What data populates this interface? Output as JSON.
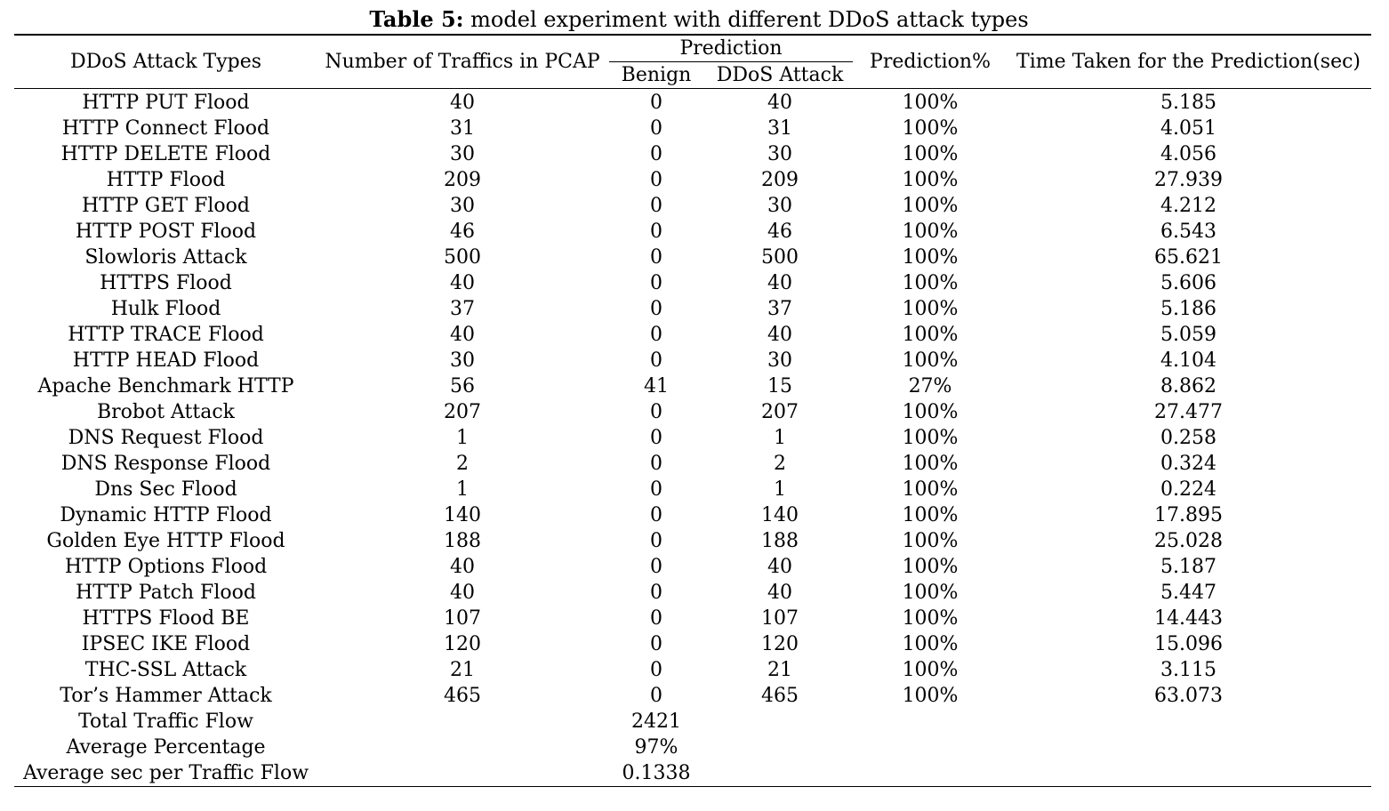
{
  "caption": {
    "label": "Table 5:",
    "text": "model experiment with different DDoS attack types"
  },
  "headers": {
    "attack_type": "DDoS Attack Types",
    "num_traffics": "Number of Traffics in PCAP",
    "prediction": "Prediction",
    "benign": "Benign",
    "ddos_attack": "DDoS Attack",
    "prediction_pct": "Prediction%",
    "time_taken": "Time Taken for the Prediction(sec)"
  },
  "rows": [
    {
      "type": "HTTP PUT Flood",
      "count": "40",
      "benign": "0",
      "ddos": "40",
      "pct": "100%",
      "time": "5.185"
    },
    {
      "type": "HTTP Connect Flood",
      "count": "31",
      "benign": "0",
      "ddos": "31",
      "pct": "100%",
      "time": "4.051"
    },
    {
      "type": "HTTP DELETE Flood",
      "count": "30",
      "benign": "0",
      "ddos": "30",
      "pct": "100%",
      "time": "4.056"
    },
    {
      "type": "HTTP Flood",
      "count": "209",
      "benign": "0",
      "ddos": "209",
      "pct": "100%",
      "time": "27.939"
    },
    {
      "type": "HTTP GET Flood",
      "count": "30",
      "benign": "0",
      "ddos": "30",
      "pct": "100%",
      "time": "4.212"
    },
    {
      "type": "HTTP POST Flood",
      "count": "46",
      "benign": "0",
      "ddos": "46",
      "pct": "100%",
      "time": "6.543"
    },
    {
      "type": "Slowloris Attack",
      "count": "500",
      "benign": "0",
      "ddos": "500",
      "pct": "100%",
      "time": "65.621"
    },
    {
      "type": "HTTPS Flood",
      "count": "40",
      "benign": "0",
      "ddos": "40",
      "pct": "100%",
      "time": "5.606"
    },
    {
      "type": "Hulk Flood",
      "count": "37",
      "benign": "0",
      "ddos": "37",
      "pct": "100%",
      "time": "5.186"
    },
    {
      "type": "HTTP TRACE Flood",
      "count": "40",
      "benign": "0",
      "ddos": "40",
      "pct": "100%",
      "time": "5.059"
    },
    {
      "type": "HTTP HEAD Flood",
      "count": "30",
      "benign": "0",
      "ddos": "30",
      "pct": "100%",
      "time": "4.104"
    },
    {
      "type": "Apache Benchmark HTTP",
      "count": "56",
      "benign": "41",
      "ddos": "15",
      "pct": "27%",
      "time": "8.862"
    },
    {
      "type": "Brobot Attack",
      "count": "207",
      "benign": "0",
      "ddos": "207",
      "pct": "100%",
      "time": "27.477"
    },
    {
      "type": "DNS Request Flood",
      "count": "1",
      "benign": "0",
      "ddos": "1",
      "pct": "100%",
      "time": "0.258"
    },
    {
      "type": "DNS Response Flood",
      "count": "2",
      "benign": "0",
      "ddos": "2",
      "pct": "100%",
      "time": "0.324"
    },
    {
      "type": "Dns Sec Flood",
      "count": "1",
      "benign": "0",
      "ddos": "1",
      "pct": "100%",
      "time": "0.224"
    },
    {
      "type": "Dynamic HTTP Flood",
      "count": "140",
      "benign": "0",
      "ddos": "140",
      "pct": "100%",
      "time": "17.895"
    },
    {
      "type": "Golden Eye HTTP Flood",
      "count": "188",
      "benign": "0",
      "ddos": "188",
      "pct": "100%",
      "time": "25.028"
    },
    {
      "type": "HTTP Options Flood",
      "count": "40",
      "benign": "0",
      "ddos": "40",
      "pct": "100%",
      "time": "5.187"
    },
    {
      "type": "HTTP Patch Flood",
      "count": "40",
      "benign": "0",
      "ddos": "40",
      "pct": "100%",
      "time": "5.447"
    },
    {
      "type": "HTTPS Flood BE",
      "count": "107",
      "benign": "0",
      "ddos": "107",
      "pct": "100%",
      "time": "14.443"
    },
    {
      "type": "IPSEC IKE Flood",
      "count": "120",
      "benign": "0",
      "ddos": "120",
      "pct": "100%",
      "time": "15.096"
    },
    {
      "type": "THC-SSL Attack",
      "count": "21",
      "benign": "0",
      "ddos": "21",
      "pct": "100%",
      "time": "3.115"
    },
    {
      "type": "Tor’s Hammer Attack",
      "count": "465",
      "benign": "0",
      "ddos": "465",
      "pct": "100%",
      "time": "63.073"
    }
  ],
  "summary": [
    {
      "label": "Total Traffic Flow",
      "value": "2421"
    },
    {
      "label": "Average Percentage",
      "value": "97%"
    },
    {
      "label": "Average sec per Traffic Flow",
      "value": "0.1338"
    }
  ]
}
